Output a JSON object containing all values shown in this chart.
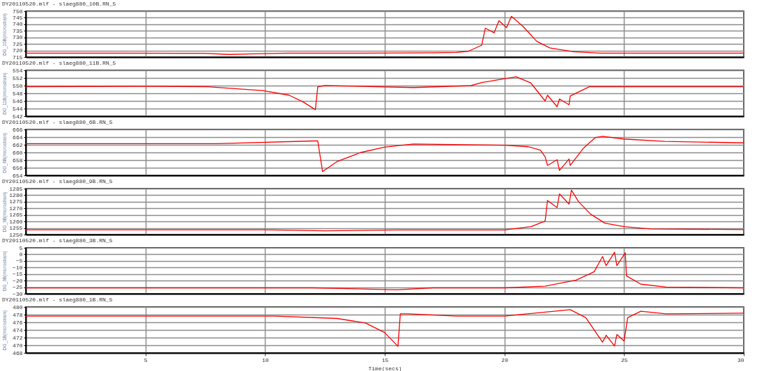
{
  "chart_data": [
    {
      "type": "line",
      "title": "DY20110520.mlf - slaeg880_10B.RN_5",
      "ylabel": "DG_10B(microstrain)",
      "xlim": [
        0,
        30
      ],
      "xticks": [
        5,
        10,
        15,
        20,
        25,
        30
      ],
      "ylim": [
        715,
        750
      ],
      "yticks": [
        715,
        720,
        725,
        730,
        735,
        740,
        745,
        750
      ],
      "grid": true,
      "tick_labels": "y",
      "series": [
        {
          "color": "#ff0000",
          "x": [
            0,
            4,
            7.5,
            8.5,
            9.5,
            11,
            14,
            17,
            18,
            18.5,
            19.05,
            19.2,
            19.57,
            19.77,
            20.09,
            20.29,
            20.77,
            21.35,
            21.9,
            22.9,
            24,
            30
          ],
          "values": [
            718,
            718,
            717.8,
            717,
            717.5,
            718,
            718,
            718.2,
            718.5,
            719.5,
            724,
            737,
            733.5,
            742.7,
            737.4,
            746,
            738.5,
            727,
            722,
            719,
            718,
            718
          ]
        }
      ]
    },
    {
      "type": "line",
      "title": "DY20110520.mlf - slaeg880_11B.RN_5",
      "ylabel": "DG_11B(microstrain)",
      "xlim": [
        0,
        30
      ],
      "xticks": [
        5,
        10,
        15,
        20,
        25,
        30
      ],
      "ylim": [
        542,
        554
      ],
      "yticks": [
        542,
        544,
        546,
        548,
        550,
        552,
        554
      ],
      "grid": true,
      "tick_labels": "y",
      "series": [
        {
          "color": "#ff0000",
          "x": [
            0,
            5,
            7.6,
            9.9,
            11,
            11.6,
            12.1,
            12.2,
            12.5,
            14,
            16.2,
            18.6,
            19.05,
            20,
            20.5,
            21.1,
            21.7,
            21.8,
            22.2,
            22.3,
            22.7,
            22.75,
            23.55,
            30
          ],
          "values": [
            549.7,
            549.8,
            549.7,
            548.7,
            547.5,
            545.7,
            543.7,
            549.7,
            550,
            549.8,
            549.5,
            550,
            550.8,
            551.8,
            552.3,
            550.7,
            546,
            547.5,
            544.5,
            546.5,
            545,
            547.3,
            549.7,
            549.7
          ]
        }
      ]
    },
    {
      "type": "line",
      "title": "DY20110520.mlf - slaeg880_6B.RN_5",
      "ylabel": "DG_6B(microstrain)",
      "xlim": [
        0,
        30
      ],
      "xticks": [
        5,
        10,
        15,
        20,
        25,
        30
      ],
      "ylim": [
        654,
        666
      ],
      "yticks": [
        654,
        656,
        658,
        660,
        662,
        664,
        666
      ],
      "grid": true,
      "tick_labels": "y",
      "series": [
        {
          "color": "#ff0000",
          "x": [
            0,
            8,
            12,
            12.2,
            12.4,
            13,
            14,
            15,
            16.2,
            20,
            21,
            21.5,
            21.7,
            21.8,
            22.2,
            22.3,
            22.7,
            22.75,
            23.3,
            23.8,
            24.1,
            25,
            26.7,
            30
          ],
          "values": [
            662.3,
            662.3,
            663,
            663,
            655,
            657.6,
            660,
            661.4,
            662.2,
            661.9,
            661.5,
            660.6,
            658.9,
            656.6,
            658.1,
            655.3,
            658.3,
            656.6,
            661.1,
            663.9,
            664.2,
            663.5,
            662.9,
            662.5
          ]
        }
      ]
    },
    {
      "type": "line",
      "title": "DY20110520.mlf - slaeg880_9B.RN_5",
      "ylabel": "DG_9B(microstrain)",
      "xlim": [
        0,
        30
      ],
      "xticks": [
        5,
        10,
        15,
        20,
        25,
        30
      ],
      "ylim": [
        1250,
        1285
      ],
      "yticks": [
        1250,
        1255,
        1260,
        1265,
        1270,
        1275,
        1280,
        1285
      ],
      "grid": true,
      "tick_labels": "y",
      "series": [
        {
          "color": "#ff0000",
          "x": [
            0,
            10,
            12.5,
            15.5,
            20,
            21.1,
            21.7,
            21.8,
            22.2,
            22.3,
            22.7,
            22.8,
            23.1,
            23.6,
            24.2,
            25,
            26.1,
            30
          ],
          "values": [
            1253.6,
            1253.6,
            1252.8,
            1253.5,
            1253.5,
            1256,
            1260.3,
            1276,
            1270.6,
            1281,
            1273.2,
            1283.9,
            1275,
            1265.6,
            1258.7,
            1256,
            1254.3,
            1253.8
          ]
        }
      ]
    },
    {
      "type": "line",
      "title": "DY20110520.mlf - slaeg880_3B.RN_5",
      "ylabel": "DG_3B(microstrain)",
      "xlim": [
        0,
        30
      ],
      "xticks": [
        5,
        10,
        15,
        20,
        25,
        30
      ],
      "ylim": [
        -30,
        5
      ],
      "yticks": [
        -30,
        -25,
        -20,
        -15,
        -10,
        -5,
        0,
        5
      ],
      "grid": true,
      "tick_labels": "y",
      "series": [
        {
          "color": "#ff0000",
          "x": [
            0,
            12,
            15.5,
            17,
            20,
            21.7,
            23,
            23.75,
            24.1,
            24.25,
            24.6,
            24.7,
            25.05,
            25.1,
            25.7,
            26.75,
            30
          ],
          "values": [
            -25.5,
            -25.5,
            -27,
            -25.5,
            -25.5,
            -24.2,
            -19.6,
            -13.2,
            -1.6,
            -8.6,
            1.6,
            -8.6,
            1.2,
            -16.4,
            -22.7,
            -24.9,
            -25.5
          ]
        }
      ]
    },
    {
      "type": "line",
      "title": "DY20110520.mlf - slaeg880_1B.RN_5",
      "ylabel": "DG_1B(microstrain)",
      "xlabel": "Time(secs)",
      "xlim": [
        0,
        30
      ],
      "xticks": [
        5,
        10,
        15,
        20,
        25,
        30
      ],
      "ylim": [
        468,
        480
      ],
      "yticks": [
        468,
        470,
        472,
        474,
        476,
        478,
        480
      ],
      "grid": true,
      "series": [
        {
          "color": "#ff0000",
          "x": [
            0,
            10.4,
            13,
            14.2,
            15,
            15.55,
            15.65,
            16,
            18,
            20,
            22.75,
            23.4,
            24.1,
            24.25,
            24.6,
            24.7,
            25,
            25.15,
            25.7,
            26.75,
            30
          ],
          "values": [
            477.6,
            477.6,
            477,
            475.8,
            473.3,
            469.7,
            478.2,
            478.2,
            477.6,
            477.6,
            479.3,
            477.2,
            470.8,
            472.6,
            469.8,
            472.8,
            471.1,
            477.2,
            478.9,
            478.2,
            478.4
          ]
        }
      ]
    }
  ]
}
